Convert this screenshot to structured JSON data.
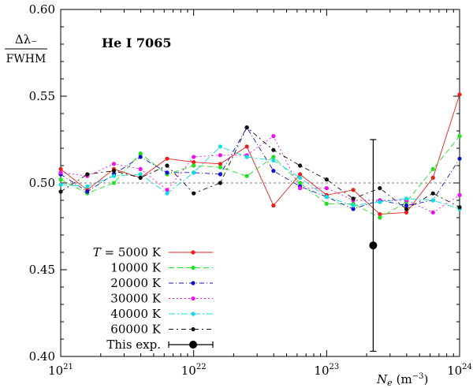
{
  "chart_data": {
    "type": "line",
    "title": "",
    "annotation": "He I 7065",
    "ylabel_top": "Δλ₋",
    "ylabel_bottom": "FWHM",
    "xlabel_symbol": "N",
    "xlabel_sub": "e",
    "xlabel_unit": "(m",
    "xlabel_unit_exp": "−3",
    "xlabel_unit_close": ")",
    "xscale": "log",
    "xlim": [
      1e+21,
      1e+24
    ],
    "ylim": [
      0.4,
      0.6
    ],
    "x_ticks": [
      {
        "base": "10",
        "exp": "21"
      },
      {
        "base": "10",
        "exp": "22"
      },
      {
        "base": "10",
        "exp": "23"
      },
      {
        "base": "10",
        "exp": "24"
      }
    ],
    "y_ticks": [
      "0.40",
      "0.45",
      "0.50",
      "0.55",
      "0.60"
    ],
    "reference_line": 0.5,
    "legend_position": "bottom-left",
    "x": [
      1e+21,
      1.585e+21,
      2.512e+21,
      3.981e+21,
      6.31e+21,
      1e+22,
      1.585e+22,
      2.512e+22,
      3.981e+22,
      6.31e+22,
      1e+23,
      1.585e+23,
      2.512e+23,
      3.981e+23,
      6.31e+23,
      1e+24
    ],
    "series": [
      {
        "name": "5000 K",
        "legend_prefix": "T = ",
        "color": "#e8201a",
        "dash": "",
        "values": [
          0.508,
          0.496,
          0.508,
          0.503,
          0.514,
          0.512,
          0.511,
          0.521,
          0.487,
          0.505,
          0.493,
          0.496,
          0.482,
          0.483,
          0.503,
          0.551
        ]
      },
      {
        "name": "10000 K",
        "legend_prefix": "",
        "color": "#22e022",
        "dash": "7,4",
        "values": [
          0.502,
          0.494,
          0.5,
          0.517,
          0.505,
          0.51,
          0.509,
          0.504,
          0.515,
          0.5,
          0.488,
          0.488,
          0.48,
          0.489,
          0.508,
          0.527
        ]
      },
      {
        "name": "20000 K",
        "legend_prefix": "",
        "color": "#1111c8",
        "dash": "6,3,1,3",
        "values": [
          0.505,
          0.495,
          0.505,
          0.515,
          0.506,
          0.506,
          0.505,
          0.532,
          0.507,
          0.498,
          0.492,
          0.485,
          0.49,
          0.487,
          0.49,
          0.514
        ]
      },
      {
        "name": "30000 K",
        "legend_prefix": "",
        "color": "#ee11ee",
        "dash": "2,3",
        "values": [
          0.506,
          0.504,
          0.511,
          0.508,
          0.496,
          0.515,
          0.516,
          0.516,
          0.527,
          0.497,
          0.497,
          0.49,
          0.49,
          0.49,
          0.483,
          0.493
        ]
      },
      {
        "name": "40000 K",
        "legend_prefix": "",
        "color": "#11dddd",
        "dash": "8,3,2,3",
        "values": [
          0.499,
          0.498,
          0.504,
          0.505,
          0.494,
          0.506,
          0.521,
          0.515,
          0.513,
          0.503,
          0.492,
          0.487,
          0.489,
          0.491,
          0.49,
          0.485
        ]
      },
      {
        "name": "60000 K",
        "legend_prefix": "",
        "color": "#111111",
        "dash": "6,4,2,4",
        "values": [
          0.495,
          0.505,
          0.507,
          0.503,
          0.51,
          0.494,
          0.5,
          0.532,
          0.519,
          0.51,
          0.502,
          0.491,
          0.497,
          0.485,
          0.494,
          0.486
        ]
      }
    ],
    "experiment": {
      "name": "This exp.",
      "x": 2.239e+23,
      "y": 0.464,
      "y_err_low": 0.403,
      "y_err_high": 0.525,
      "color": "#000000"
    }
  }
}
